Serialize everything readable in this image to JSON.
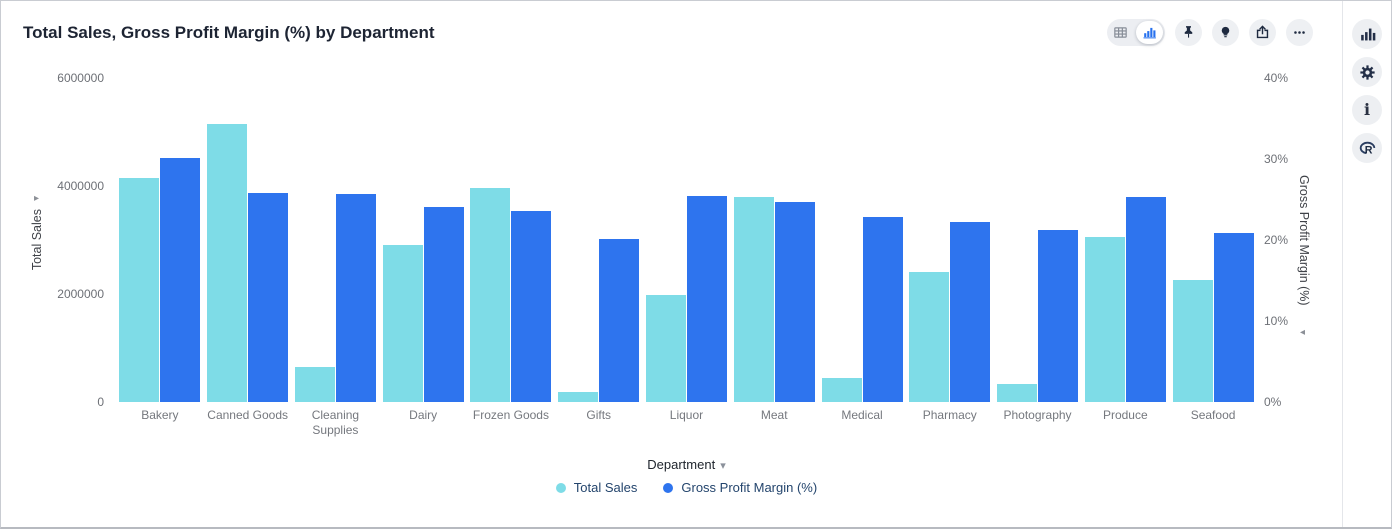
{
  "title": "Total Sales, Gross Profit Margin (%) by Department",
  "toolbar": {
    "view_toggle": {
      "selected": "chart",
      "options": [
        "table-view",
        "chart-view"
      ]
    },
    "buttons": [
      "pin",
      "insights-lightbulb",
      "share",
      "more-options"
    ]
  },
  "sidebar": {
    "buttons": [
      "chart-style",
      "settings-gear",
      "info",
      "r-analysis"
    ]
  },
  "glyphs": {
    "left_axis_caret": "▸",
    "right_axis_caret": "◂",
    "dropdown_caret": "▾"
  },
  "chart_data": {
    "type": "bar",
    "title": "Total Sales, Gross Profit Margin (%) by Department",
    "xlabel": "Department",
    "categories": [
      "Bakery",
      "Canned Goods",
      "Cleaning Supplies",
      "Dairy",
      "Frozen Goods",
      "Gifts",
      "Liquor",
      "Meat",
      "Medical",
      "Pharmacy",
      "Photography",
      "Produce",
      "Seafood"
    ],
    "series": [
      {
        "name": "Total Sales",
        "axis": "left",
        "color": "#7EDCE7",
        "values": [
          4140000,
          5150000,
          650000,
          2915000,
          3965000,
          185000,
          1975000,
          3800000,
          440000,
          2410000,
          340000,
          3060000,
          2260000
        ]
      },
      {
        "name": "Gross Profit Margin (%)",
        "axis": "right",
        "color": "#2E74EE",
        "values": [
          30.1,
          25.8,
          25.7,
          24.1,
          23.6,
          20.1,
          25.4,
          24.7,
          22.9,
          22.2,
          21.2,
          25.3,
          20.9
        ]
      }
    ],
    "left_axis": {
      "label": "Total Sales",
      "min": 0,
      "max": 6000000,
      "ticks": [
        "0",
        "2000000",
        "4000000",
        "6000000"
      ]
    },
    "right_axis": {
      "label": "Gross Profit Margin (%)",
      "min": 0,
      "max": 40,
      "ticks": [
        "0%",
        "10%",
        "20%",
        "30%",
        "40%"
      ]
    },
    "grid": false,
    "legend_position": "bottom"
  },
  "colors": {
    "total_sales_bar": "#7EDCE7",
    "gross_profit_margin_bar": "#2E74EE",
    "title_text": "#1d2433",
    "axis_tick_text": "#6d7076",
    "legend_text": "#24456d",
    "selected_icon_blue": "#2670ee",
    "toolbar_icon_dark": "#1e2a40",
    "button_background": "#eef0f3"
  }
}
